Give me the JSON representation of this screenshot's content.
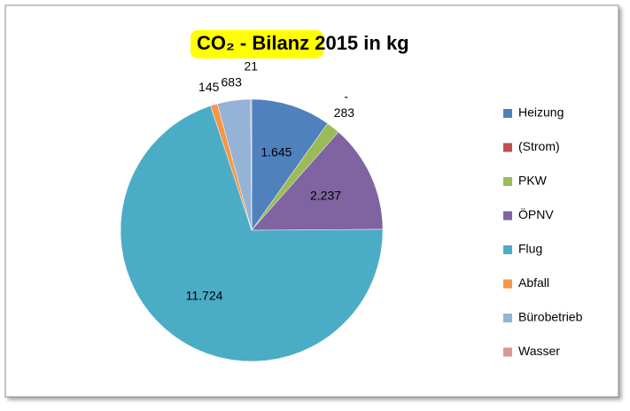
{
  "chart_data": {
    "type": "pie",
    "title": "CO₂ - Bilanz 2015 in kg",
    "categories": [
      "Heizung",
      "(Strom)",
      "PKW",
      "ÖPNV",
      "Flug",
      "Abfall",
      "Bürobetrieb",
      "Wasser"
    ],
    "values": [
      1645,
      0,
      283,
      2237,
      11724,
      145,
      683,
      21
    ],
    "value_labels": [
      "1.645",
      "-",
      "283",
      "2.237",
      "11.724",
      "145",
      "683",
      "21"
    ],
    "colors": [
      "#4f81bd",
      "#c0504d",
      "#9bbb59",
      "#8064a2",
      "#4bacc6",
      "#f79646",
      "#95b3d7",
      "#d99694"
    ],
    "legend": "right"
  }
}
